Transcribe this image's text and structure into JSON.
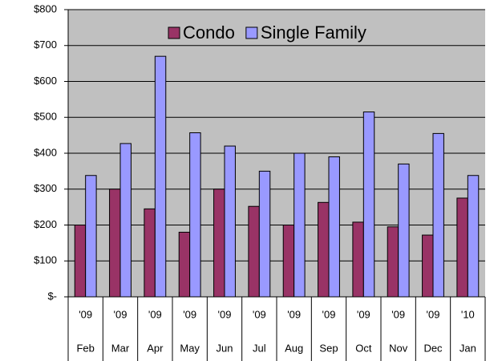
{
  "chart_data": {
    "type": "bar",
    "categories": [
      "Feb",
      "Mar",
      "Apr",
      "May",
      "Jun",
      "Jul",
      "Aug",
      "Sep",
      "Oct",
      "Nov",
      "Dec",
      "Jan"
    ],
    "category_years": [
      "'09",
      "'09",
      "'09",
      "'09",
      "'09",
      "'09",
      "'09",
      "'09",
      "'09",
      "'09",
      "'09",
      "'10"
    ],
    "series": [
      {
        "name": "Condo",
        "color": "#993366",
        "values": [
          200,
          300,
          245,
          180,
          300,
          252,
          200,
          263,
          208,
          195,
          172,
          275
        ]
      },
      {
        "name": "Single Family",
        "color": "#9999ff",
        "values": [
          338,
          427,
          670,
          457,
          420,
          350,
          400,
          390,
          515,
          370,
          455,
          338
        ]
      }
    ],
    "ylim": [
      0,
      800
    ],
    "yticks": [
      {
        "value": 0,
        "label": "$-"
      },
      {
        "value": 100,
        "label": "$100"
      },
      {
        "value": 200,
        "label": "$200"
      },
      {
        "value": 300,
        "label": "$300"
      },
      {
        "value": 400,
        "label": "$400"
      },
      {
        "value": 500,
        "label": "$500"
      },
      {
        "value": 600,
        "label": "$600"
      },
      {
        "value": 700,
        "label": "$700"
      },
      {
        "value": 800,
        "label": "$800"
      }
    ],
    "grid": true,
    "background": "#c0c0c0",
    "legend": "top"
  }
}
